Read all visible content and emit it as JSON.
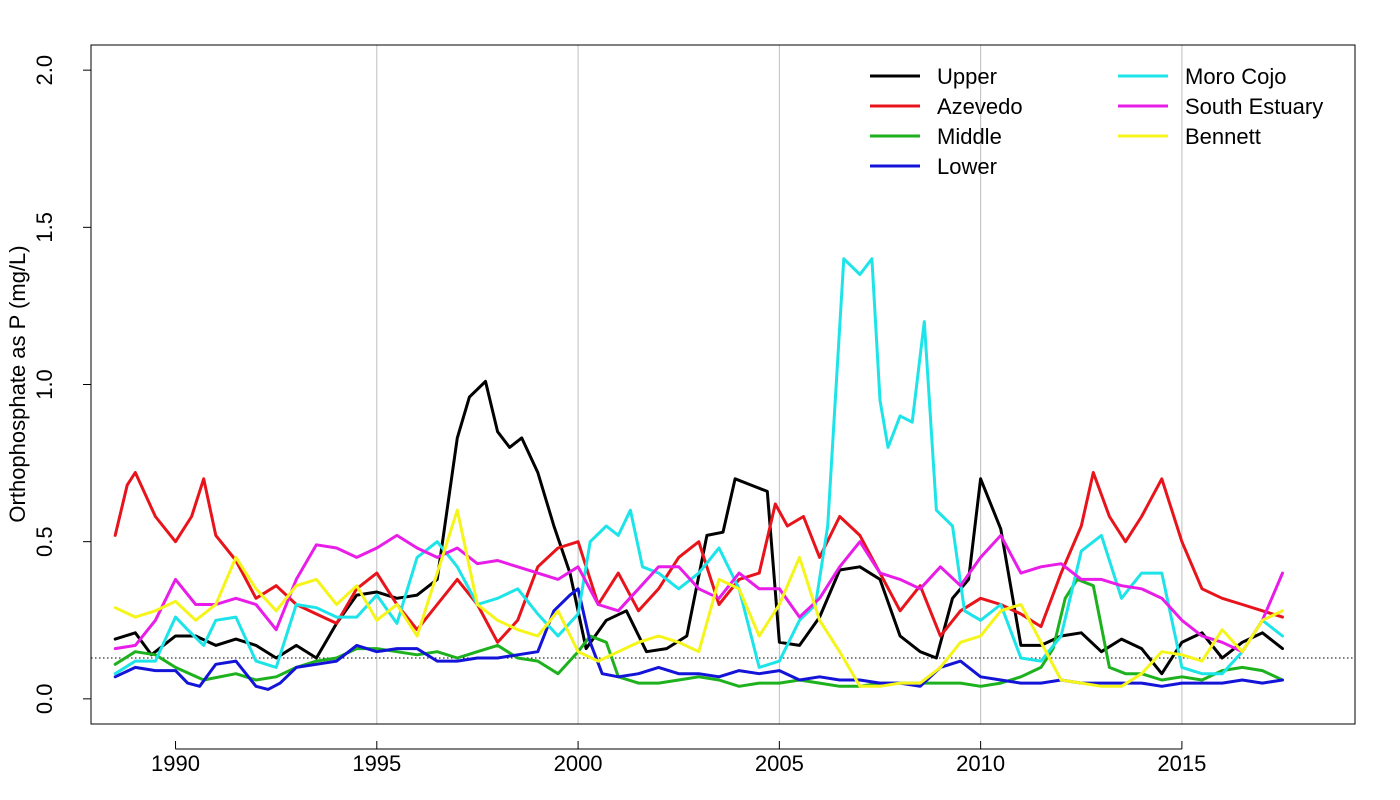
{
  "chart_data": {
    "type": "line",
    "ylabel": "Orthophosphate as P (mg/L)",
    "xlabel": "",
    "xlim": [
      1987.9,
      2019.3
    ],
    "ylim": [
      -0.08,
      2.08
    ],
    "x_ticks": [
      1990,
      1995,
      2000,
      2005,
      2010,
      2015
    ],
    "x_tick_labels": [
      "1990",
      "1995",
      "2000",
      "2005",
      "2010",
      "2015"
    ],
    "y_ticks": [
      0.0,
      0.5,
      1.0,
      1.5,
      2.0
    ],
    "y_tick_labels": [
      "0.0",
      "0.5",
      "1.0",
      "1.5",
      "2.0"
    ],
    "vertical_gridlines": [
      1995,
      2000,
      2005,
      2010,
      2015
    ],
    "reference_line": {
      "y": 0.13,
      "style": "dotted"
    },
    "legend_position": "top-right",
    "series": [
      {
        "name": "Upper",
        "color": "#000000",
        "x": [
          1988.5,
          1989.0,
          1989.4,
          1990.0,
          1990.5,
          1991.0,
          1991.5,
          1992.0,
          1992.5,
          1993.0,
          1993.5,
          1994.0,
          1994.5,
          1995.0,
          1995.5,
          1996.0,
          1996.5,
          1997.0,
          1997.3,
          1997.7,
          1998.0,
          1998.3,
          1998.6,
          1999.0,
          1999.4,
          1999.8,
          2000.2,
          2000.7,
          2001.2,
          2001.7,
          2002.2,
          2002.7,
          2003.2,
          2003.6,
          2003.9,
          2004.3,
          2004.7,
          2005.0,
          2005.5,
          2006.0,
          2006.5,
          2007.0,
          2007.5,
          2008.0,
          2008.5,
          2008.9,
          2009.3,
          2009.7,
          2010.0,
          2010.5,
          2011.0,
          2011.5,
          2012.0,
          2012.5,
          2013.0,
          2013.5,
          2014.0,
          2014.5,
          2015.0,
          2015.5,
          2016.0,
          2016.5,
          2017.0,
          2017.5
        ],
        "values": [
          0.19,
          0.21,
          0.14,
          0.2,
          0.2,
          0.17,
          0.19,
          0.17,
          0.13,
          0.17,
          0.13,
          0.24,
          0.33,
          0.34,
          0.32,
          0.33,
          0.38,
          0.83,
          0.96,
          1.01,
          0.85,
          0.8,
          0.83,
          0.72,
          0.55,
          0.4,
          0.16,
          0.25,
          0.28,
          0.15,
          0.16,
          0.2,
          0.52,
          0.53,
          0.7,
          0.68,
          0.66,
          0.18,
          0.17,
          0.26,
          0.41,
          0.42,
          0.38,
          0.2,
          0.15,
          0.13,
          0.32,
          0.38,
          0.7,
          0.54,
          0.17,
          0.17,
          0.2,
          0.21,
          0.15,
          0.19,
          0.16,
          0.08,
          0.18,
          0.21,
          0.13,
          0.18,
          0.21,
          0.16
        ]
      },
      {
        "name": "Azevedo",
        "color": "#e8141b",
        "x": [
          1988.5,
          1988.8,
          1989.0,
          1989.5,
          1990.0,
          1990.4,
          1990.7,
          1991.0,
          1991.5,
          1992.0,
          1992.5,
          1993.0,
          1993.5,
          1994.0,
          1994.5,
          1995.0,
          1995.5,
          1996.0,
          1996.5,
          1997.0,
          1997.5,
          1998.0,
          1998.5,
          1999.0,
          1999.5,
          2000.0,
          2000.5,
          2001.0,
          2001.5,
          2002.0,
          2002.5,
          2003.0,
          2003.5,
          2004.0,
          2004.5,
          2004.9,
          2005.2,
          2005.6,
          2006.0,
          2006.5,
          2007.0,
          2007.5,
          2008.0,
          2008.5,
          2009.0,
          2009.5,
          2010.0,
          2010.5,
          2011.0,
          2011.5,
          2012.0,
          2012.5,
          2012.8,
          2013.2,
          2013.6,
          2014.0,
          2014.5,
          2015.0,
          2015.5,
          2016.0,
          2016.5,
          2017.0,
          2017.5
        ],
        "values": [
          0.52,
          0.68,
          0.72,
          0.58,
          0.5,
          0.58,
          0.7,
          0.52,
          0.44,
          0.32,
          0.36,
          0.3,
          0.27,
          0.24,
          0.35,
          0.4,
          0.3,
          0.22,
          0.3,
          0.38,
          0.3,
          0.18,
          0.25,
          0.42,
          0.48,
          0.5,
          0.3,
          0.4,
          0.28,
          0.35,
          0.45,
          0.5,
          0.3,
          0.38,
          0.4,
          0.62,
          0.55,
          0.58,
          0.45,
          0.58,
          0.52,
          0.4,
          0.28,
          0.36,
          0.2,
          0.28,
          0.32,
          0.3,
          0.27,
          0.23,
          0.4,
          0.55,
          0.72,
          0.58,
          0.5,
          0.58,
          0.7,
          0.5,
          0.35,
          0.32,
          0.3,
          0.28,
          0.26
        ]
      },
      {
        "name": "Middle",
        "color": "#1eb11e",
        "x": [
          1988.5,
          1989.0,
          1989.5,
          1990.0,
          1990.7,
          1991.5,
          1992.0,
          1992.5,
          1993.0,
          1993.5,
          1994.0,
          1994.5,
          1995.0,
          1995.5,
          1996.0,
          1996.5,
          1997.0,
          1997.5,
          1998.0,
          1998.5,
          1999.0,
          1999.5,
          2000.0,
          2000.3,
          2000.7,
          2001.0,
          2001.5,
          2002.0,
          2002.5,
          2003.0,
          2003.5,
          2004.0,
          2004.5,
          2005.0,
          2005.5,
          2006.0,
          2006.5,
          2007.0,
          2007.5,
          2008.0,
          2008.5,
          2009.0,
          2009.5,
          2010.0,
          2010.5,
          2011.0,
          2011.5,
          2011.8,
          2012.1,
          2012.4,
          2012.8,
          2013.2,
          2013.6,
          2014.0,
          2014.5,
          2015.0,
          2015.5,
          2016.0,
          2016.5,
          2017.0,
          2017.5
        ],
        "values": [
          0.11,
          0.15,
          0.14,
          0.1,
          0.06,
          0.08,
          0.06,
          0.07,
          0.1,
          0.12,
          0.13,
          0.16,
          0.16,
          0.15,
          0.14,
          0.15,
          0.13,
          0.15,
          0.17,
          0.13,
          0.12,
          0.08,
          0.15,
          0.2,
          0.18,
          0.07,
          0.05,
          0.05,
          0.06,
          0.07,
          0.06,
          0.04,
          0.05,
          0.05,
          0.06,
          0.05,
          0.04,
          0.04,
          0.05,
          0.05,
          0.05,
          0.05,
          0.05,
          0.04,
          0.05,
          0.07,
          0.1,
          0.16,
          0.32,
          0.38,
          0.36,
          0.1,
          0.08,
          0.08,
          0.06,
          0.07,
          0.06,
          0.09,
          0.1,
          0.09,
          0.06
        ]
      },
      {
        "name": "Lower",
        "color": "#1414d8",
        "x": [
          1988.5,
          1989.0,
          1989.5,
          1990.0,
          1990.3,
          1990.6,
          1991.0,
          1991.5,
          1992.0,
          1992.3,
          1992.6,
          1993.0,
          1993.5,
          1994.0,
          1994.5,
          1995.0,
          1995.5,
          1996.0,
          1996.5,
          1997.0,
          1997.5,
          1998.0,
          1998.5,
          1999.0,
          1999.4,
          1999.8,
          2000.0,
          2000.3,
          2000.6,
          2001.0,
          2001.5,
          2002.0,
          2002.5,
          2003.0,
          2003.5,
          2004.0,
          2004.5,
          2005.0,
          2005.5,
          2006.0,
          2006.5,
          2007.0,
          2007.5,
          2008.0,
          2008.5,
          2009.0,
          2009.5,
          2010.0,
          2010.5,
          2011.0,
          2011.5,
          2012.0,
          2012.5,
          2013.0,
          2013.5,
          2014.0,
          2014.5,
          2015.0,
          2015.5,
          2016.0,
          2016.5,
          2017.0,
          2017.5
        ],
        "values": [
          0.07,
          0.1,
          0.09,
          0.09,
          0.05,
          0.04,
          0.11,
          0.12,
          0.04,
          0.03,
          0.05,
          0.1,
          0.11,
          0.12,
          0.17,
          0.15,
          0.16,
          0.16,
          0.12,
          0.12,
          0.13,
          0.13,
          0.14,
          0.15,
          0.28,
          0.33,
          0.35,
          0.18,
          0.08,
          0.07,
          0.08,
          0.1,
          0.08,
          0.08,
          0.07,
          0.09,
          0.08,
          0.09,
          0.06,
          0.07,
          0.06,
          0.06,
          0.05,
          0.05,
          0.04,
          0.1,
          0.12,
          0.07,
          0.06,
          0.05,
          0.05,
          0.06,
          0.05,
          0.05,
          0.05,
          0.05,
          0.04,
          0.05,
          0.05,
          0.05,
          0.06,
          0.05,
          0.06
        ]
      },
      {
        "name": "Moro Cojo",
        "color": "#1de4e8",
        "x": [
          1988.5,
          1989.0,
          1989.5,
          1990.0,
          1990.3,
          1990.7,
          1991.0,
          1991.5,
          1992.0,
          1992.5,
          1993.0,
          1993.5,
          1994.0,
          1994.5,
          1995.0,
          1995.5,
          1996.0,
          1996.5,
          1997.0,
          1997.5,
          1998.0,
          1998.5,
          1999.0,
          1999.5,
          2000.0,
          2000.3,
          2000.7,
          2001.0,
          2001.3,
          2001.6,
          2002.0,
          2002.5,
          2003.0,
          2003.5,
          2004.0,
          2004.5,
          2005.0,
          2005.5,
          2005.9,
          2006.2,
          2006.6,
          2007.0,
          2007.3,
          2007.5,
          2007.7,
          2008.0,
          2008.3,
          2008.6,
          2008.9,
          2009.3,
          2009.6,
          2010.0,
          2010.5,
          2011.0,
          2011.5,
          2012.0,
          2012.5,
          2013.0,
          2013.5,
          2014.0,
          2014.5,
          2015.0,
          2015.5,
          2016.0,
          2016.5,
          2017.0,
          2017.5
        ],
        "values": [
          0.08,
          0.12,
          0.12,
          0.26,
          0.22,
          0.17,
          0.25,
          0.26,
          0.12,
          0.1,
          0.3,
          0.29,
          0.26,
          0.26,
          0.33,
          0.24,
          0.45,
          0.5,
          0.42,
          0.3,
          0.32,
          0.35,
          0.27,
          0.2,
          0.27,
          0.5,
          0.55,
          0.52,
          0.6,
          0.42,
          0.4,
          0.35,
          0.4,
          0.48,
          0.35,
          0.1,
          0.12,
          0.25,
          0.3,
          0.55,
          1.4,
          1.35,
          1.4,
          0.95,
          0.8,
          0.9,
          0.88,
          1.2,
          0.6,
          0.55,
          0.28,
          0.25,
          0.3,
          0.13,
          0.12,
          0.2,
          0.47,
          0.52,
          0.32,
          0.4,
          0.4,
          0.1,
          0.08,
          0.08,
          0.15,
          0.25,
          0.2
        ]
      },
      {
        "name": "South Estuary",
        "color": "#e81de8",
        "x": [
          1988.5,
          1989.0,
          1989.5,
          1990.0,
          1990.5,
          1991.0,
          1991.5,
          1992.0,
          1992.5,
          1993.0,
          1993.5,
          1994.0,
          1994.5,
          1995.0,
          1995.5,
          1996.0,
          1996.5,
          1997.0,
          1997.5,
          1998.0,
          1998.5,
          1999.0,
          1999.5,
          2000.0,
          2000.5,
          2001.0,
          2001.5,
          2002.0,
          2002.5,
          2003.0,
          2003.5,
          2004.0,
          2004.5,
          2005.0,
          2005.5,
          2006.0,
          2006.5,
          2007.0,
          2007.5,
          2008.0,
          2008.5,
          2009.0,
          2009.5,
          2010.0,
          2010.5,
          2011.0,
          2011.5,
          2012.0,
          2012.5,
          2013.0,
          2013.5,
          2014.0,
          2014.5,
          2015.0,
          2015.5,
          2016.0,
          2016.5,
          2017.0,
          2017.5
        ],
        "values": [
          0.16,
          0.17,
          0.25,
          0.38,
          0.3,
          0.3,
          0.32,
          0.3,
          0.22,
          0.38,
          0.49,
          0.48,
          0.45,
          0.48,
          0.52,
          0.48,
          0.45,
          0.48,
          0.43,
          0.44,
          0.42,
          0.4,
          0.38,
          0.42,
          0.3,
          0.28,
          0.35,
          0.42,
          0.42,
          0.35,
          0.32,
          0.4,
          0.35,
          0.35,
          0.26,
          0.32,
          0.42,
          0.5,
          0.4,
          0.38,
          0.35,
          0.42,
          0.36,
          0.45,
          0.52,
          0.4,
          0.42,
          0.43,
          0.38,
          0.38,
          0.36,
          0.35,
          0.32,
          0.25,
          0.2,
          0.18,
          0.15,
          0.25,
          0.4
        ]
      },
      {
        "name": "Bennett",
        "color": "#f5f51b",
        "x": [
          1988.5,
          1989.0,
          1989.5,
          1990.0,
          1990.5,
          1991.0,
          1991.5,
          1992.0,
          1992.5,
          1993.0,
          1993.5,
          1994.0,
          1994.5,
          1995.0,
          1995.5,
          1996.0,
          1996.5,
          1997.0,
          1997.5,
          1998.0,
          1998.5,
          1999.0,
          1999.5,
          2000.0,
          2000.5,
          2001.0,
          2001.5,
          2002.0,
          2002.5,
          2003.0,
          2003.5,
          2004.0,
          2004.5,
          2005.0,
          2005.5,
          2006.0,
          2006.5,
          2007.0,
          2007.5,
          2008.0,
          2008.5,
          2009.0,
          2009.5,
          2010.0,
          2010.5,
          2011.0,
          2011.5,
          2012.0,
          2012.5,
          2013.0,
          2013.5,
          2014.0,
          2014.5,
          2015.0,
          2015.5,
          2016.0,
          2016.5,
          2017.0,
          2017.5
        ],
        "values": [
          0.29,
          0.26,
          0.28,
          0.31,
          0.25,
          0.3,
          0.45,
          0.35,
          0.28,
          0.36,
          0.38,
          0.3,
          0.36,
          0.25,
          0.3,
          0.2,
          0.4,
          0.6,
          0.3,
          0.25,
          0.22,
          0.2,
          0.28,
          0.15,
          0.12,
          0.15,
          0.18,
          0.2,
          0.18,
          0.15,
          0.38,
          0.35,
          0.2,
          0.3,
          0.45,
          0.25,
          0.15,
          0.04,
          0.04,
          0.05,
          0.05,
          0.1,
          0.18,
          0.2,
          0.28,
          0.3,
          0.18,
          0.06,
          0.05,
          0.04,
          0.04,
          0.08,
          0.15,
          0.14,
          0.12,
          0.22,
          0.15,
          0.25,
          0.28
        ]
      }
    ]
  }
}
